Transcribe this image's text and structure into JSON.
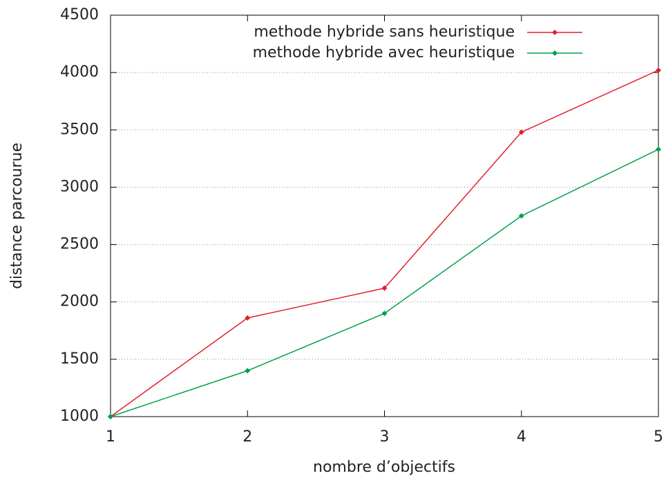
{
  "chart_data": {
    "type": "line",
    "xlabel": "nombre d’objectifs",
    "ylabel": "distance parcourue",
    "x": [
      1,
      2,
      3,
      4,
      5
    ],
    "series": [
      {
        "name": "methode hybride sans heuristique",
        "color": "#e0202a",
        "values": [
          1000,
          1860,
          2120,
          3480,
          4020
        ]
      },
      {
        "name": "methode hybride avec heuristique",
        "color": "#00a04a",
        "values": [
          1000,
          1400,
          1900,
          2750,
          3330
        ]
      }
    ],
    "xlim": [
      1,
      5
    ],
    "xticks": [
      1,
      2,
      3,
      4,
      5
    ],
    "ylim": [
      1000,
      4500
    ],
    "yticks": [
      1000,
      1500,
      2000,
      2500,
      3000,
      3500,
      4000,
      4500
    ],
    "grid": true,
    "legend": "top-right"
  }
}
